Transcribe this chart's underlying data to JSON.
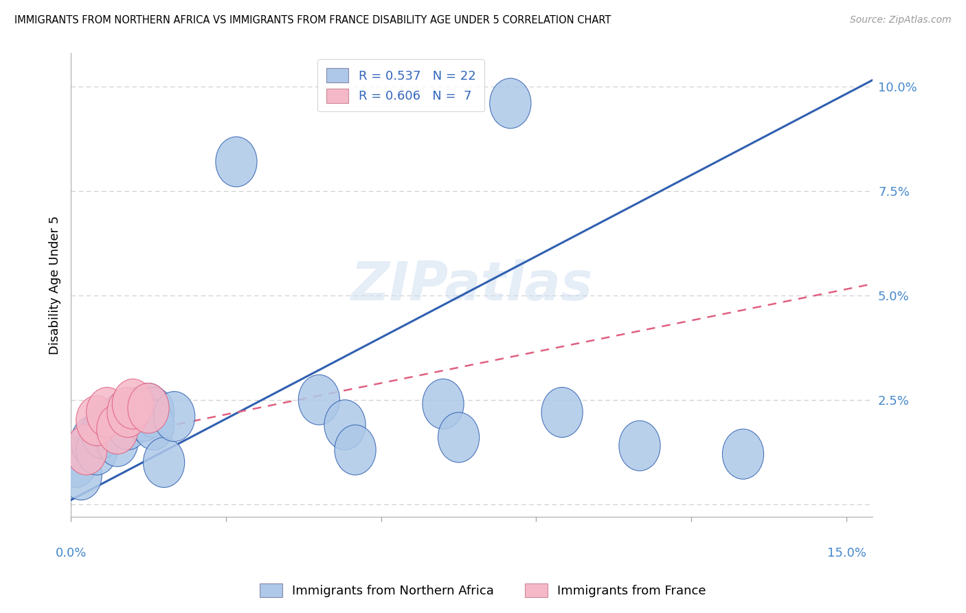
{
  "title": "IMMIGRANTS FROM NORTHERN AFRICA VS IMMIGRANTS FROM FRANCE DISABILITY AGE UNDER 5 CORRELATION CHART",
  "source": "Source: ZipAtlas.com",
  "ylabel": "Disability Age Under 5",
  "ytick_labels": [
    "",
    "2.5%",
    "5.0%",
    "7.5%",
    "10.0%"
  ],
  "ytick_values": [
    0.0,
    0.025,
    0.05,
    0.075,
    0.1
  ],
  "xtick_values": [
    0.0,
    0.03,
    0.06,
    0.09,
    0.12,
    0.15
  ],
  "xlim": [
    0.0,
    0.155
  ],
  "ylim": [
    -0.003,
    0.108
  ],
  "blue_color": "#adc8e8",
  "pink_color": "#f5b8c8",
  "blue_line_color": "#3060b0",
  "pink_line_color": "#e06080",
  "watermark": "ZIPatlas",
  "blue_line_x0": 0.0,
  "blue_line_y0": 0.001,
  "blue_line_x1": 0.148,
  "blue_line_y1": 0.097,
  "pink_line_x0": 0.0,
  "pink_line_y0": 0.014,
  "pink_line_x1": 0.148,
  "pink_line_y1": 0.051,
  "scatter_blue": [
    [
      0.001,
      0.01
    ],
    [
      0.002,
      0.007
    ],
    [
      0.004,
      0.015
    ],
    [
      0.005,
      0.013
    ],
    [
      0.006,
      0.017
    ],
    [
      0.007,
      0.019
    ],
    [
      0.009,
      0.015
    ],
    [
      0.01,
      0.021
    ],
    [
      0.011,
      0.019
    ],
    [
      0.013,
      0.022
    ],
    [
      0.014,
      0.021
    ],
    [
      0.015,
      0.023
    ],
    [
      0.016,
      0.022
    ],
    [
      0.016,
      0.019
    ],
    [
      0.018,
      0.01
    ],
    [
      0.02,
      0.021
    ],
    [
      0.032,
      0.082
    ],
    [
      0.048,
      0.025
    ],
    [
      0.053,
      0.019
    ],
    [
      0.055,
      0.013
    ],
    [
      0.072,
      0.024
    ],
    [
      0.075,
      0.016
    ],
    [
      0.085,
      0.096
    ],
    [
      0.095,
      0.022
    ],
    [
      0.11,
      0.014
    ],
    [
      0.13,
      0.012
    ]
  ],
  "scatter_pink": [
    [
      0.003,
      0.013
    ],
    [
      0.005,
      0.02
    ],
    [
      0.007,
      0.022
    ],
    [
      0.009,
      0.018
    ],
    [
      0.011,
      0.022
    ],
    [
      0.012,
      0.024
    ],
    [
      0.015,
      0.023
    ]
  ]
}
